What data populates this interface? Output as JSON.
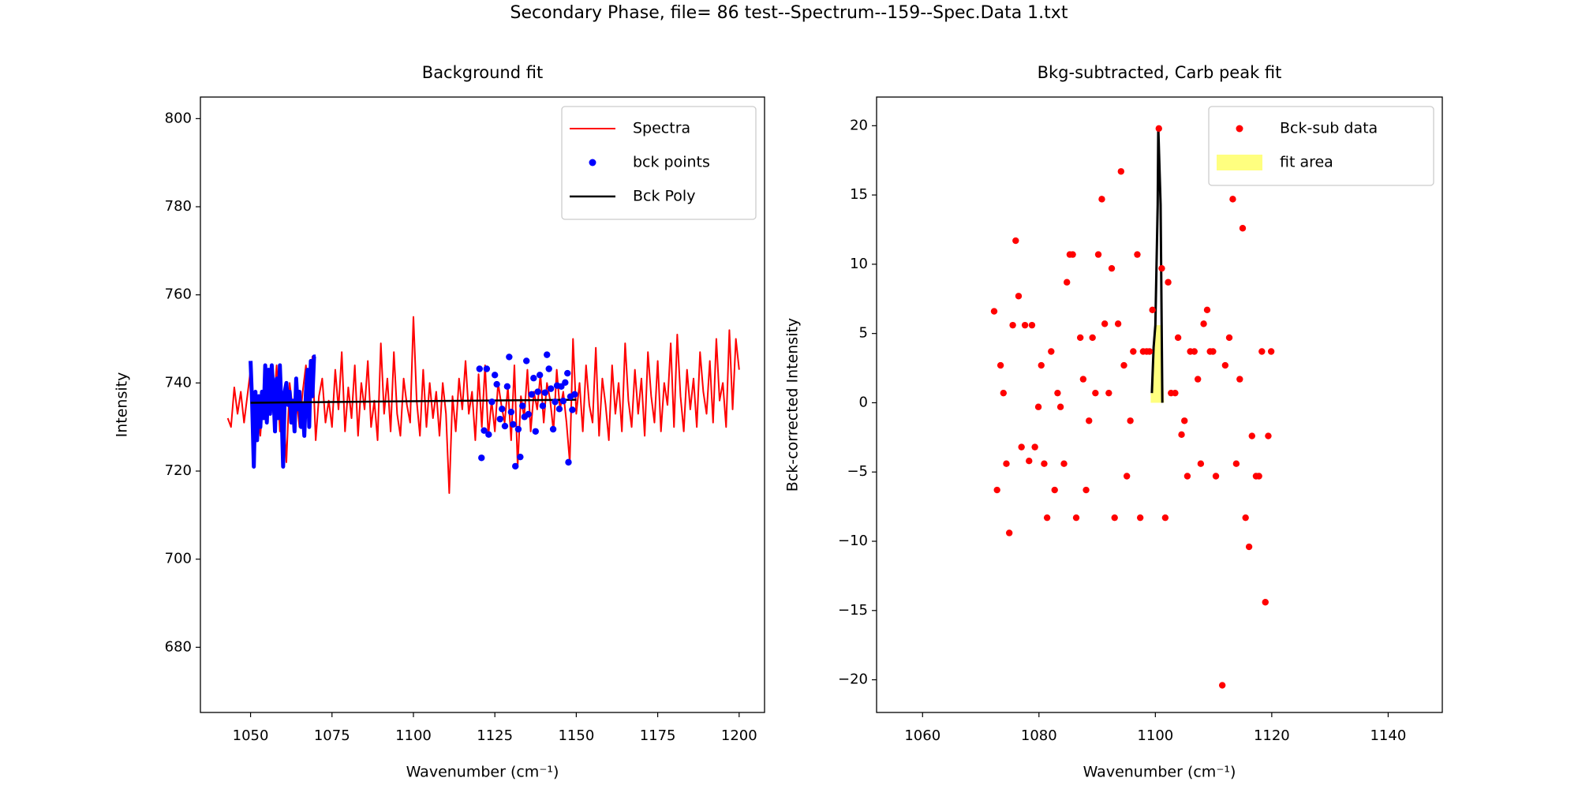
{
  "title": "Secondary Phase, file= 86 test--Spectrum--159--Spec.Data 1.txt",
  "chart_data": [
    {
      "type": "line",
      "title": "Background fit",
      "x_label": "Wavenumber (cm⁻¹)",
      "y_label": "Intensity",
      "xlim": [
        1034.6,
        1207.8
      ],
      "ylim": [
        665.2,
        804.9
      ],
      "xticks": [
        1050,
        1075,
        1100,
        1125,
        1150,
        1175,
        1200
      ],
      "yticks": [
        680,
        700,
        720,
        740,
        760,
        780,
        800
      ],
      "grid": false,
      "legend": "upper right",
      "series": [
        {
          "name": "Spectra",
          "type": "line",
          "color": "#ff0000",
          "linewidth": 2,
          "x": [
            1043,
            1044,
            1045,
            1046,
            1047,
            1048,
            1049,
            1050,
            1051,
            1052,
            1053,
            1054,
            1055,
            1056,
            1057,
            1058,
            1059,
            1060,
            1061,
            1062,
            1063,
            1064,
            1065,
            1066,
            1067,
            1068,
            1069,
            1070,
            1071,
            1072,
            1073,
            1074,
            1075,
            1076,
            1077,
            1078,
            1079,
            1080,
            1081,
            1082,
            1083,
            1084,
            1085,
            1086,
            1087,
            1088,
            1089,
            1090,
            1091,
            1092,
            1093,
            1094,
            1095,
            1096,
            1097,
            1098,
            1099,
            1100,
            1101,
            1102,
            1103,
            1104,
            1105,
            1106,
            1107,
            1108,
            1109,
            1110,
            1111,
            1112,
            1113,
            1114,
            1115,
            1116,
            1117,
            1118,
            1119,
            1120,
            1121,
            1122,
            1123,
            1124,
            1125,
            1126,
            1127,
            1128,
            1129,
            1130,
            1131,
            1132,
            1133,
            1134,
            1135,
            1136,
            1137,
            1138,
            1139,
            1140,
            1141,
            1142,
            1143,
            1144,
            1145,
            1146,
            1147,
            1148,
            1149,
            1150,
            1151,
            1152,
            1153,
            1154,
            1155,
            1156,
            1157,
            1158,
            1159,
            1160,
            1161,
            1162,
            1163,
            1164,
            1165,
            1166,
            1167,
            1168,
            1169,
            1170,
            1171,
            1172,
            1173,
            1174,
            1175,
            1176,
            1177,
            1178,
            1179,
            1180,
            1181,
            1182,
            1183,
            1184,
            1185,
            1186,
            1187,
            1188,
            1189,
            1190,
            1191,
            1192,
            1193,
            1194,
            1195,
            1196,
            1197,
            1198,
            1199,
            1200
          ],
          "values": [
            732,
            730,
            739,
            733,
            738,
            731,
            737,
            743,
            722,
            735,
            728,
            738,
            731,
            742,
            733,
            744,
            729,
            736,
            722,
            740,
            734,
            737,
            730,
            738,
            744,
            735,
            746,
            727,
            737,
            741,
            731,
            736,
            730,
            743,
            734,
            747,
            729,
            739,
            732,
            744,
            728,
            740,
            734,
            745,
            730,
            736,
            727,
            749,
            733,
            741,
            729,
            747,
            733,
            728,
            741,
            735,
            731,
            755,
            736,
            728,
            743,
            730,
            740,
            732,
            738,
            728,
            740,
            733,
            715,
            737,
            729,
            741,
            734,
            745,
            733,
            738,
            727,
            742,
            730,
            744,
            728,
            736,
            729,
            740,
            735,
            731,
            739,
            727,
            744,
            721,
            737,
            732,
            743,
            729,
            738,
            734,
            742,
            731,
            740,
            736,
            729,
            743,
            734,
            738,
            731,
            722,
            750,
            733,
            740,
            729,
            744,
            735,
            731,
            748,
            728,
            741,
            735,
            727,
            744,
            733,
            740,
            729,
            749,
            736,
            730,
            743,
            733,
            741,
            728,
            747,
            737,
            731,
            745,
            729,
            740,
            735,
            749,
            730,
            751,
            737,
            729,
            743,
            734,
            741,
            730,
            747,
            738,
            733,
            745,
            731,
            750,
            736,
            740,
            730,
            752,
            734,
            750,
            743
          ]
        },
        {
          "name": "bck points",
          "type": "scatter",
          "color": "#0000ff",
          "x": [
            1120.3,
            1120.9,
            1121.7,
            1122.5,
            1123.1,
            1124.1,
            1125.0,
            1125.6,
            1126.6,
            1127.2,
            1128.1,
            1128.8,
            1129.4,
            1130.0,
            1130.6,
            1131.3,
            1132.2,
            1132.8,
            1133.5,
            1134.1,
            1134.7,
            1135.3,
            1136.3,
            1136.9,
            1137.5,
            1138.2,
            1138.8,
            1139.7,
            1140.4,
            1141.0,
            1141.6,
            1142.2,
            1142.9,
            1143.5,
            1144.1,
            1144.8,
            1145.4,
            1146.0,
            1146.6,
            1147.3,
            1147.6,
            1148.2,
            1148.8,
            1149.5
          ],
          "values": [
            743.2,
            723,
            729.2,
            743.2,
            728.3,
            735.7,
            741.8,
            739.7,
            731.8,
            734.1,
            730.2,
            739.2,
            745.9,
            733.4,
            730.6,
            721.1,
            729.5,
            723.2,
            734.8,
            732.3,
            745,
            732.9,
            737.4,
            741.1,
            729,
            738,
            741.8,
            734.8,
            737.8,
            746.4,
            743.2,
            738.7,
            729.5,
            735.7,
            739.4,
            734.1,
            739.2,
            735.9,
            740.1,
            742.2,
            722,
            736.9,
            733.9,
            737.4
          ]
        },
        {
          "type": "line",
          "color": "#0000ff",
          "linewidth": 5,
          "x": [
            1050,
            1050.5,
            1051,
            1051.5,
            1052,
            1052.5,
            1053,
            1053.5,
            1054,
            1054.5,
            1055,
            1055.5,
            1056,
            1056.5,
            1057,
            1057.5,
            1058,
            1058.5,
            1059,
            1059.5,
            1060,
            1060.5,
            1061,
            1061.5,
            1062,
            1062.5,
            1063,
            1063.5,
            1064,
            1064.5,
            1065,
            1065.5,
            1066,
            1066.5,
            1067,
            1067.5,
            1068,
            1068.5,
            1069,
            1069.5,
            1070
          ],
          "values": [
            745,
            735,
            721,
            738,
            727,
            737,
            730,
            738,
            732,
            744,
            731,
            743,
            733,
            744,
            738,
            729,
            741,
            732,
            744,
            734,
            721,
            738,
            740,
            735,
            738,
            731,
            736,
            729,
            741,
            734,
            738,
            730,
            735,
            728,
            738,
            743,
            730,
            745,
            737,
            746,
            746
          ]
        },
        {
          "name": "Bck Poly",
          "type": "line",
          "color": "#000000",
          "linewidth": 2.5,
          "x": [
            1050,
            1150
          ],
          "values": [
            735.5,
            736.2
          ]
        }
      ]
    },
    {
      "type": "scatter",
      "title": "Bkg-subtracted, Carb peak fit",
      "x_label": "Wavenumber (cm⁻¹)",
      "y_label": "Bck-corrected Intensity",
      "xlim": [
        1052.1,
        1149.3
      ],
      "ylim": [
        -22.36,
        22.07
      ],
      "xticks": [
        1060,
        1080,
        1100,
        1120,
        1140
      ],
      "yticks": [
        {
          "value": -20,
          "label": "−20"
        },
        {
          "value": -15,
          "label": "−15"
        },
        {
          "value": -10,
          "label": "−10"
        },
        {
          "value": -5,
          "label": "−5"
        },
        0,
        5,
        10,
        15,
        20
      ],
      "grid": false,
      "legend": "upper right",
      "series": [
        {
          "name": "Bck-sub data",
          "type": "scatter",
          "color": "#ff0000",
          "x": [
            1072.3,
            1072.8,
            1073.4,
            1073.9,
            1074.4,
            1074.9,
            1075.5,
            1076.0,
            1076.5,
            1077.0,
            1077.6,
            1078.3,
            1078.8,
            1079.3,
            1079.9,
            1080.4,
            1080.9,
            1081.4,
            1082.1,
            1082.7,
            1083.2,
            1083.7,
            1084.3,
            1084.8,
            1085.3,
            1085.8,
            1086.4,
            1087.1,
            1087.6,
            1088.1,
            1088.6,
            1089.2,
            1089.7,
            1090.2,
            1090.8,
            1091.3,
            1092.0,
            1092.5,
            1093.0,
            1093.6,
            1094.1,
            1094.6,
            1095.1,
            1095.7,
            1096.2,
            1096.9,
            1097.4,
            1097.9,
            1098.5,
            1099.0,
            1099.5,
            1100.6,
            1101.1,
            1101.7,
            1102.2,
            1102.7,
            1103.4,
            1103.9,
            1104.5,
            1105.0,
            1105.5,
            1106.0,
            1106.7,
            1107.3,
            1107.8,
            1108.3,
            1108.9,
            1109.4,
            1109.9,
            1110.4,
            1111.5,
            1112.0,
            1112.7,
            1113.3,
            1113.9,
            1114.5,
            1115.0,
            1115.5,
            1116.1,
            1116.6,
            1117.3,
            1117.8,
            1118.3,
            1118.9,
            1119.4,
            1119.9
          ],
          "values": [
            6.6,
            -6.3,
            2.7,
            0.7,
            -4.4,
            -9.4,
            5.6,
            11.7,
            7.7,
            -3.2,
            5.6,
            -4.2,
            5.6,
            -3.2,
            -0.3,
            2.7,
            -4.4,
            -8.3,
            3.7,
            -6.3,
            0.7,
            -0.3,
            -4.4,
            8.7,
            10.7,
            10.7,
            -8.3,
            4.7,
            1.7,
            -6.3,
            -1.3,
            4.7,
            0.7,
            10.7,
            14.7,
            5.7,
            0.7,
            9.7,
            -8.3,
            5.7,
            16.7,
            2.7,
            -5.3,
            -1.3,
            3.7,
            10.7,
            -8.3,
            3.7,
            3.7,
            3.7,
            6.7,
            19.8,
            9.7,
            -8.3,
            8.7,
            0.7,
            0.7,
            4.7,
            -2.3,
            -1.3,
            -5.3,
            3.7,
            3.7,
            1.7,
            -4.4,
            5.7,
            6.7,
            3.7,
            3.7,
            -5.3,
            -20.4,
            2.7,
            4.7,
            14.7,
            -4.4,
            1.7,
            12.6,
            -8.3,
            -10.4,
            -2.4,
            -5.3,
            -5.3,
            3.7,
            -14.4,
            -2.4,
            3.7
          ]
        },
        {
          "type": "line",
          "color": "#000000",
          "linewidth": 3,
          "x": [
            1099.4,
            1099.7,
            1100.0,
            1100.4,
            1100.5,
            1100.9,
            1101.2
          ],
          "values": [
            0.7,
            4.0,
            5.6,
            14.3,
            19.9,
            14.3,
            0.0
          ]
        },
        {
          "name": "fit area",
          "type": "area",
          "color": "#ffff00",
          "alpha": 0.5,
          "x": [
            1099.2,
            1099.7,
            1100.0,
            1101.0,
            1101.5
          ],
          "values": [
            0.7,
            4.0,
            5.6,
            5.6,
            0
          ]
        }
      ]
    }
  ]
}
